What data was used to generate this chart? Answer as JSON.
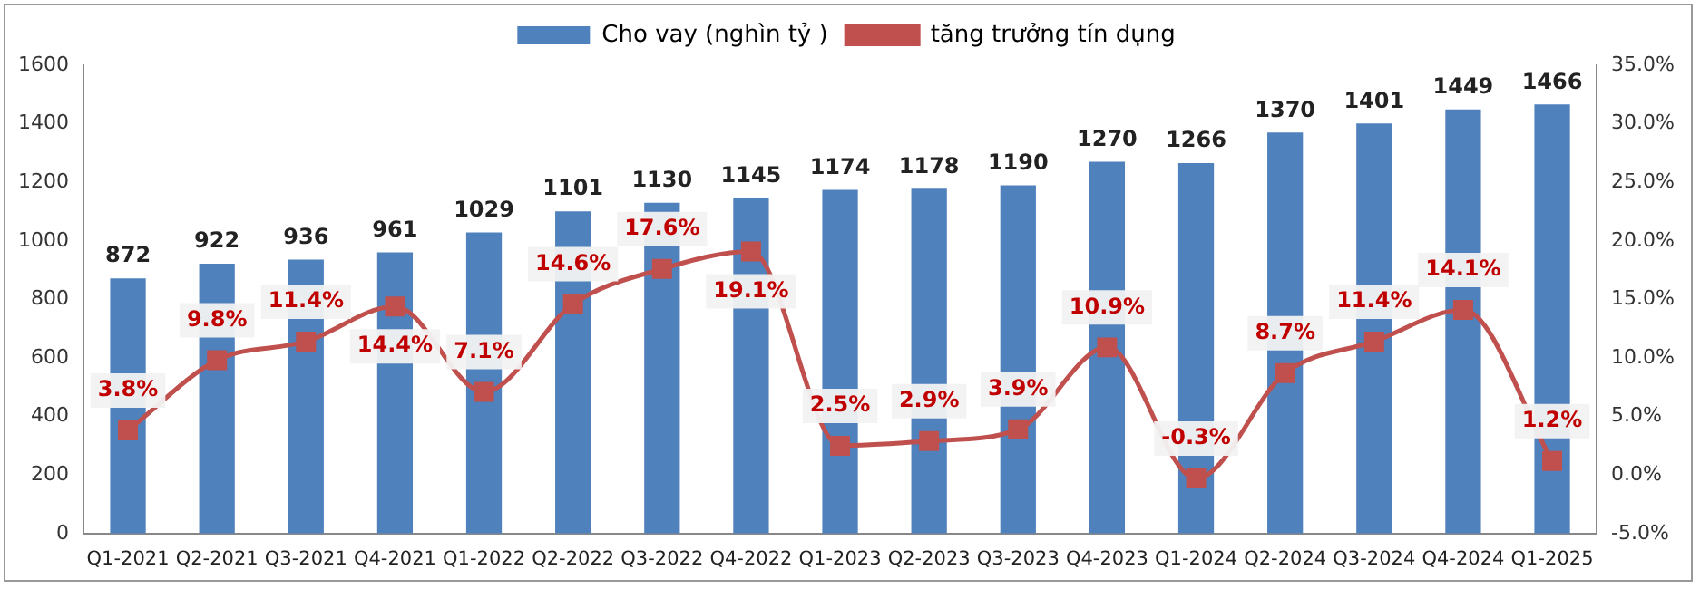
{
  "chart_data": {
    "type": "bar",
    "categories": [
      "Q1-2021",
      "Q2-2021",
      "Q3-2021",
      "Q4-2021",
      "Q1-2022",
      "Q2-2022",
      "Q3-2022",
      "Q4-2022",
      "Q1-2023",
      "Q2-2023",
      "Q3-2023",
      "Q4-2023",
      "Q1-2024",
      "Q2-2024",
      "Q3-2024",
      "Q4-2024",
      "Q1-2025"
    ],
    "series": [
      {
        "name": "Cho vay (nghìn tỷ )",
        "color": "#4f81bd",
        "values": [
          872,
          922,
          936,
          961,
          1029,
          1101,
          1130,
          1145,
          1174,
          1178,
          1190,
          1270,
          1266,
          1370,
          1401,
          1449,
          1466
        ],
        "value_labels": [
          "872",
          "922",
          "936",
          "961",
          "1029",
          "1101",
          "1130",
          "1145",
          "1174",
          "1178",
          "1190",
          "1270",
          "1266",
          "1370",
          "1401",
          "1449",
          "1466"
        ]
      },
      {
        "name": "tăng trưởng tín dụng",
        "type": "line",
        "axis": "y2",
        "color": "#c0504d",
        "values": [
          3.8,
          9.8,
          11.4,
          14.4,
          7.1,
          14.6,
          17.6,
          19.1,
          2.5,
          2.9,
          3.9,
          10.9,
          -0.3,
          8.7,
          11.4,
          14.1,
          1.2
        ],
        "value_labels": [
          "3.8%",
          "9.8%",
          "11.4%",
          "14.4%",
          "7.1%",
          "14.6%",
          "17.6%",
          "19.1%",
          "2.5%",
          "2.9%",
          "3.9%",
          "10.9%",
          "-0.3%",
          "8.7%",
          "11.4%",
          "14.1%",
          "1.2%"
        ]
      }
    ],
    "ylim": [
      0,
      1600
    ],
    "yticks": [
      0,
      200,
      400,
      600,
      800,
      1000,
      1200,
      1400,
      1600
    ],
    "y2lim": [
      -5,
      35
    ],
    "y2ticks": [
      {
        "value": -5,
        "label": "-5.0%"
      },
      {
        "value": 0,
        "label": "0.0%"
      },
      {
        "value": 5,
        "label": "5.0%"
      },
      {
        "value": 10,
        "label": "10.0%"
      },
      {
        "value": 15,
        "label": "15.0%"
      },
      {
        "value": 20,
        "label": "20.0%"
      },
      {
        "value": 25,
        "label": "25.0%"
      },
      {
        "value": 30,
        "label": "30.0%"
      },
      {
        "value": 35,
        "label": "35.0%"
      }
    ],
    "grid": false,
    "legend": "top",
    "marker": "square",
    "line_style": "solid"
  }
}
